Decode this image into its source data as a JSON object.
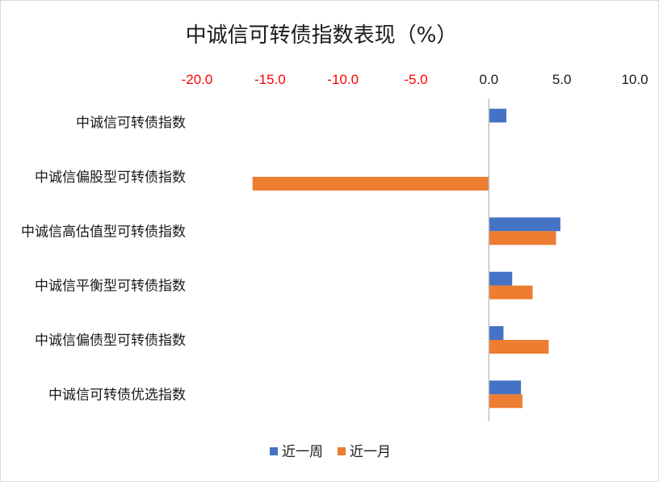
{
  "chart_data": {
    "type": "bar",
    "orientation": "horizontal",
    "title": "中诚信可转债指数表现（%）",
    "categories": [
      "中诚信可转债指数",
      "中诚信偏股型可转债指数",
      "中诚信高估值型可转债指数",
      "中诚信平衡型可转债指数",
      "中诚信偏债型可转债指数",
      "中诚信可转债优选指数"
    ],
    "series": [
      {
        "name": "近一周",
        "color": "#4472c4",
        "values": [
          1.2,
          null,
          4.9,
          1.6,
          1.0,
          2.2
        ]
      },
      {
        "name": "近一月",
        "color": "#ed7d31",
        "values": [
          null,
          -16.2,
          4.6,
          3.0,
          4.1,
          2.3
        ]
      }
    ],
    "xlim": [
      -20,
      10
    ],
    "ticks": [
      -20.0,
      -15.0,
      -10.0,
      -5.0,
      0.0,
      5.0,
      10.0
    ],
    "tick_labels": [
      "-20.0",
      "-15.0",
      "-10.0",
      "-5.0",
      "0.0",
      "5.0",
      "10.0"
    ],
    "negative_tick_color": "#ff0000",
    "positive_tick_color": "#1a1a1a",
    "axis_position": "top",
    "legend_position": "bottom",
    "grid": false
  }
}
